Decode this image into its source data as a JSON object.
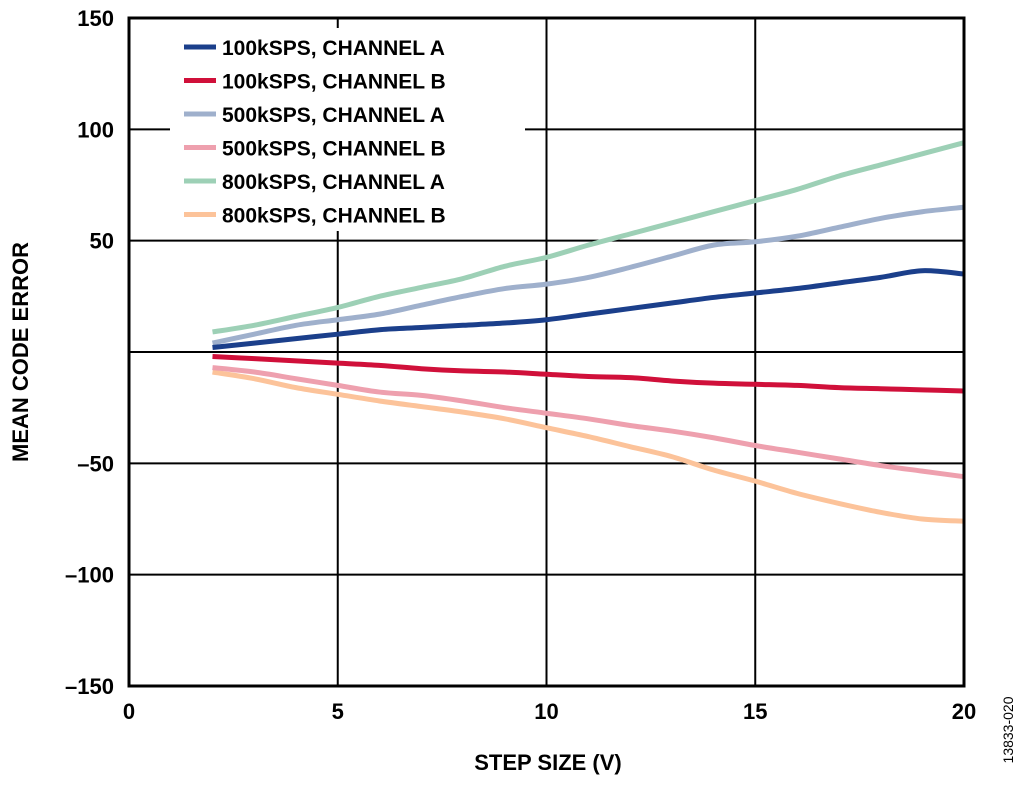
{
  "chart_data": {
    "type": "line",
    "title": "",
    "xlabel": "STEP SIZE (V)",
    "ylabel": "MEAN CODE ERROR",
    "xlim": [
      0,
      20
    ],
    "ylim": [
      -150,
      150
    ],
    "x_ticks": [
      "0",
      "5",
      "10",
      "15",
      "20"
    ],
    "y_ticks": [
      "150",
      "100",
      "50",
      "",
      "–50",
      "–100",
      "–150"
    ],
    "grid": true,
    "legend_position": "top-left",
    "x": [
      2,
      3,
      4,
      5,
      6,
      7,
      8,
      9,
      10,
      11,
      12,
      13,
      14,
      15,
      16,
      17,
      18,
      19,
      20
    ],
    "series": [
      {
        "name": "100kSPS, CHANNEL A",
        "color": "#1b3f8b",
        "values": [
          2,
          4,
          6,
          8,
          10,
          11,
          12,
          13,
          14.5,
          17,
          19.5,
          22,
          24.5,
          26.5,
          28.5,
          31,
          33.5,
          36.5,
          35
        ]
      },
      {
        "name": "100kSPS, CHANNEL B",
        "color": "#d0103a",
        "values": [
          -2,
          -3,
          -4,
          -5,
          -6,
          -7.5,
          -8.5,
          -9,
          -10,
          -11,
          -11.5,
          -13,
          -14,
          -14.5,
          -15,
          -16,
          -16.5,
          -17,
          -17.5
        ]
      },
      {
        "name": "500kSPS, CHANNEL A",
        "color": "#9fb0cc",
        "values": [
          4,
          8,
          12,
          14.5,
          17,
          21,
          25,
          28.5,
          30.5,
          33.5,
          38,
          43,
          48,
          49.5,
          52,
          56,
          60,
          63,
          65
        ]
      },
      {
        "name": "500kSPS, CHANNEL B",
        "color": "#eea0ae",
        "values": [
          -7,
          -9,
          -12,
          -15,
          -18,
          -19.5,
          -22,
          -25,
          -27.5,
          -30,
          -33,
          -35.5,
          -38.5,
          -42,
          -45,
          -48,
          -51,
          -53.5,
          -56
        ]
      },
      {
        "name": "800kSPS, CHANNEL A",
        "color": "#9dd0b6",
        "values": [
          9,
          12,
          16,
          20,
          25,
          29,
          33,
          38.5,
          42.5,
          48,
          53,
          58,
          63,
          68,
          73,
          79,
          84,
          89,
          94
        ]
      },
      {
        "name": "800kSPS, CHANNEL B",
        "color": "#fcc39a",
        "values": [
          -9,
          -12,
          -16,
          -19,
          -22,
          -24.5,
          -27,
          -30,
          -34,
          -38,
          -42.5,
          -47,
          -53,
          -58,
          -63.5,
          -68,
          -72,
          -75,
          -76
        ]
      }
    ],
    "figure_id": "13833-020"
  }
}
